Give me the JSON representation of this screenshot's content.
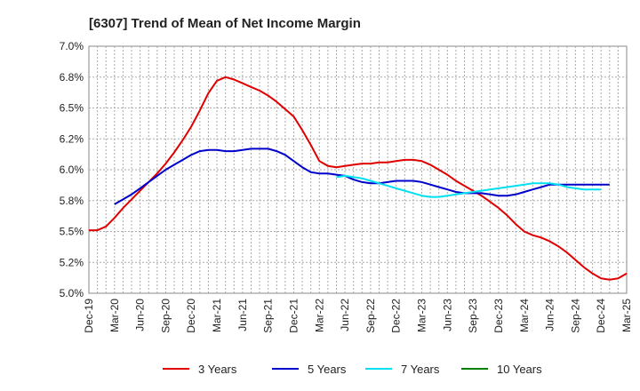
{
  "chart_data": {
    "type": "line",
    "title": "[6307]  Trend of Mean of Net Income Margin",
    "xlabel": "",
    "ylabel": "",
    "x_ticks": [
      "Dec-19",
      "Mar-20",
      "Jun-20",
      "Sep-20",
      "Dec-20",
      "Mar-21",
      "Jun-21",
      "Sep-21",
      "Dec-21",
      "Mar-22",
      "Jun-22",
      "Sep-22",
      "Dec-22",
      "Mar-23",
      "Jun-23",
      "Sep-23",
      "Dec-23",
      "Mar-24",
      "Jun-24",
      "Sep-24",
      "Dec-24",
      "Mar-25"
    ],
    "y_ticks": [
      "5.0%",
      "5.2%",
      "5.5%",
      "5.8%",
      "6.0%",
      "6.2%",
      "6.5%",
      "6.8%",
      "7.0%"
    ],
    "ylim": [
      5.0,
      7.0
    ],
    "grid": true,
    "legend_position": "bottom",
    "series": [
      {
        "name": "3 Years",
        "color": "#e00000",
        "values": [
          5.51,
          5.51,
          5.54,
          5.61,
          5.69,
          5.76,
          5.83,
          5.9,
          5.97,
          6.05,
          6.14,
          6.24,
          6.35,
          6.48,
          6.62,
          6.72,
          6.75,
          6.73,
          6.7,
          6.67,
          6.64,
          6.6,
          6.55,
          6.49,
          6.43,
          6.32,
          6.2,
          6.07,
          6.03,
          6.02,
          6.03,
          6.04,
          6.05,
          6.05,
          6.06,
          6.06,
          6.07,
          6.08,
          6.08,
          6.07,
          6.04,
          6.0,
          5.96,
          5.91,
          5.87,
          5.83,
          5.79,
          5.74,
          5.69,
          5.63,
          5.56,
          5.5,
          5.47,
          5.45,
          5.42,
          5.38,
          5.33,
          5.27,
          5.21,
          5.16,
          5.12,
          5.11,
          5.12,
          5.16
        ]
      },
      {
        "name": "5 Years",
        "color": "#0000cc",
        "values": [
          null,
          null,
          null,
          5.72,
          5.76,
          5.8,
          5.85,
          5.9,
          5.95,
          6.0,
          6.04,
          6.08,
          6.12,
          6.15,
          6.16,
          6.16,
          6.15,
          6.15,
          6.16,
          6.17,
          6.17,
          6.17,
          6.15,
          6.12,
          6.07,
          6.02,
          5.98,
          5.97,
          5.97,
          5.96,
          5.95,
          5.92,
          5.9,
          5.89,
          5.89,
          5.9,
          5.91,
          5.91,
          5.91,
          5.9,
          5.88,
          5.86,
          5.84,
          5.82,
          5.81,
          5.81,
          5.81,
          5.8,
          5.79,
          5.79,
          5.8,
          5.82,
          5.84,
          5.86,
          5.88,
          5.88,
          5.88,
          5.88,
          5.88,
          5.88,
          5.88,
          5.88
        ]
      },
      {
        "name": "7 Years",
        "color": "#00e0f0",
        "values": [
          null,
          null,
          null,
          null,
          null,
          null,
          null,
          null,
          null,
          null,
          null,
          null,
          null,
          null,
          null,
          null,
          null,
          null,
          null,
          null,
          null,
          null,
          null,
          null,
          null,
          null,
          null,
          null,
          null,
          5.94,
          5.95,
          5.94,
          5.93,
          5.91,
          5.89,
          5.87,
          5.85,
          5.83,
          5.81,
          5.79,
          5.78,
          5.78,
          5.79,
          5.8,
          5.81,
          5.82,
          5.83,
          5.84,
          5.85,
          5.86,
          5.87,
          5.88,
          5.89,
          5.89,
          5.89,
          5.88,
          5.86,
          5.85,
          5.84,
          5.84,
          5.84
        ]
      },
      {
        "name": "10 Years",
        "color": "#008000",
        "values": []
      }
    ]
  }
}
